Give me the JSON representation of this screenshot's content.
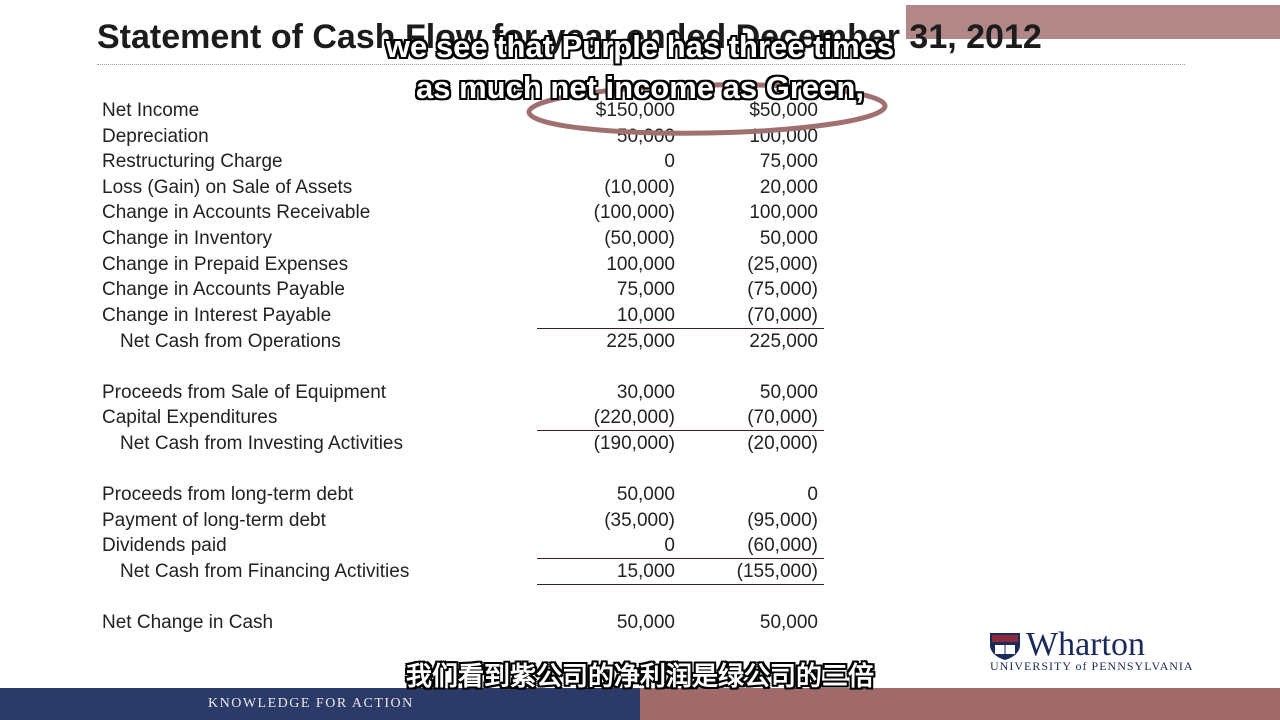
{
  "slide": {
    "title": "Statement of Cash Flow for year ended December 31, 2012",
    "rows": [
      {
        "label": "Net Income",
        "v1": "$150,000",
        "v2": "$50,000"
      },
      {
        "label": "Depreciation",
        "v1": "50,000",
        "v2": "100,000"
      },
      {
        "label": "Restructuring Charge",
        "v1": "0",
        "v2": "75,000"
      },
      {
        "label": "Loss (Gain) on Sale of Assets",
        "v1": "(10,000)",
        "v2": "20,000"
      },
      {
        "label": "Change in Accounts Receivable",
        "v1": "(100,000)",
        "v2": "100,000"
      },
      {
        "label": "Change in Inventory",
        "v1": "(50,000)",
        "v2": "50,000"
      },
      {
        "label": "Change in Prepaid Expenses",
        "v1": "100,000",
        "v2": "(25,000)"
      },
      {
        "label": "Change in Accounts Payable",
        "v1": "75,000",
        "v2": "(75,000)"
      },
      {
        "label": "Change in Interest Payable",
        "v1": "10,000",
        "v2": "(70,000)"
      },
      {
        "label": "Net Cash from Operations",
        "v1": "225,000",
        "v2": "225,000"
      },
      {
        "label": "Proceeds from Sale of Equipment",
        "v1": "30,000",
        "v2": "50,000"
      },
      {
        "label": "Capital Expenditures",
        "v1": "(220,000)",
        "v2": "(70,000)"
      },
      {
        "label": "Net Cash from Investing Activities",
        "v1": "(190,000)",
        "v2": "(20,000)"
      },
      {
        "label": "Proceeds from long-term debt",
        "v1": "50,000",
        "v2": "0"
      },
      {
        "label": "Payment of long-term debt",
        "v1": "(35,000)",
        "v2": "(95,000)"
      },
      {
        "label": "Dividends paid",
        "v1": "0",
        "v2": "(60,000)"
      },
      {
        "label": "Net Cash from Financing Activities",
        "v1": "15,000",
        "v2": "(155,000)"
      },
      {
        "label": "Net Change in Cash",
        "v1": "50,000",
        "v2": "50,000"
      }
    ]
  },
  "captions": {
    "en_line1": "we see that Purple has three times",
    "en_line2": "as much net income as Green,",
    "zh": "我们看到紫公司的净利润是绿公司的三倍"
  },
  "logo": {
    "name": "Wharton",
    "subtitle": "UNIVERSITY of PENNSYLVANIA"
  },
  "footer": {
    "tagline": "KNOWLEDGE FOR ACTION"
  },
  "colors": {
    "footer_left": "#2b3a66",
    "footer_right": "#a06a6a",
    "highlight_ellipse": "#a07070"
  }
}
